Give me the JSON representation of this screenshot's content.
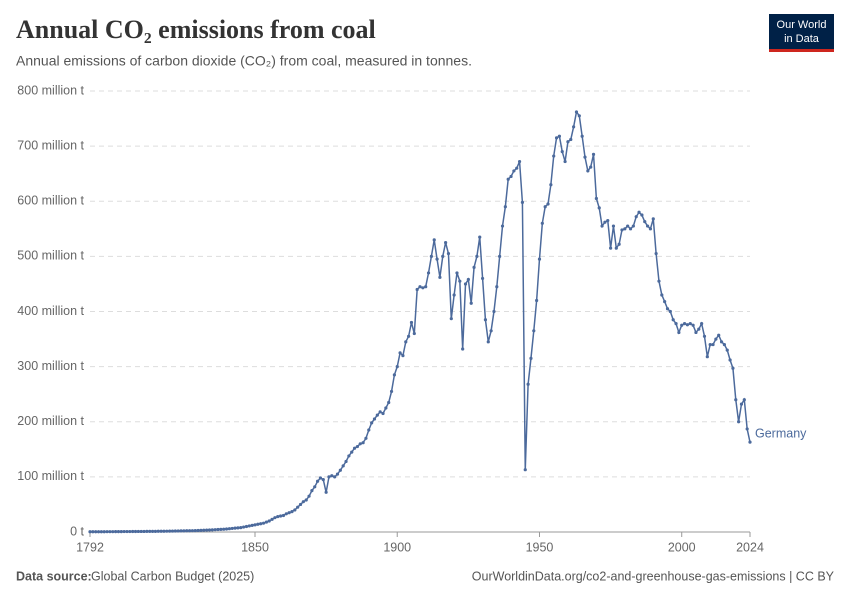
{
  "chart_data": {
    "type": "line",
    "title": "Annual CO₂ emissions from coal",
    "subtitle": "Annual emissions of carbon dioxide (CO₂) from coal, measured in tonnes.",
    "logo": [
      "Our World",
      "in Data"
    ],
    "source_label": "Data source:",
    "source": "Global Carbon Budget (2025)",
    "url": "OurWorldinData.org/co2-and-greenhouse-gas-emissions | CC BY",
    "xlim": [
      1792,
      2024
    ],
    "xticks": [
      1792,
      1850,
      1900,
      1950,
      2000,
      2024
    ],
    "ylim": [
      0,
      800000000.0
    ],
    "yticks": [
      {
        "value": 0,
        "label": "0 t"
      },
      {
        "value": 100000000.0,
        "label": "100 million t"
      },
      {
        "value": 200000000.0,
        "label": "200 million t"
      },
      {
        "value": 300000000.0,
        "label": "300 million t"
      },
      {
        "value": 400000000.0,
        "label": "400 million t"
      },
      {
        "value": 500000000.0,
        "label": "500 million t"
      },
      {
        "value": 600000000.0,
        "label": "600 million t"
      },
      {
        "value": 700000000.0,
        "label": "700 million t"
      },
      {
        "value": 800000000.0,
        "label": "800 million t"
      }
    ],
    "grid": true,
    "x": [
      1792,
      1793,
      1794,
      1795,
      1796,
      1797,
      1798,
      1799,
      1800,
      1801,
      1802,
      1803,
      1804,
      1805,
      1806,
      1807,
      1808,
      1809,
      1810,
      1811,
      1812,
      1813,
      1814,
      1815,
      1816,
      1817,
      1818,
      1819,
      1820,
      1821,
      1822,
      1823,
      1824,
      1825,
      1826,
      1827,
      1828,
      1829,
      1830,
      1831,
      1832,
      1833,
      1834,
      1835,
      1836,
      1837,
      1838,
      1839,
      1840,
      1841,
      1842,
      1843,
      1844,
      1845,
      1846,
      1847,
      1848,
      1849,
      1850,
      1851,
      1852,
      1853,
      1854,
      1855,
      1856,
      1857,
      1858,
      1859,
      1860,
      1861,
      1862,
      1863,
      1864,
      1865,
      1866,
      1867,
      1868,
      1869,
      1870,
      1871,
      1872,
      1873,
      1874,
      1875,
      1876,
      1877,
      1878,
      1879,
      1880,
      1881,
      1882,
      1883,
      1884,
      1885,
      1886,
      1887,
      1888,
      1889,
      1890,
      1891,
      1892,
      1893,
      1894,
      1895,
      1896,
      1897,
      1898,
      1899,
      1900,
      1901,
      1902,
      1903,
      1904,
      1905,
      1906,
      1907,
      1908,
      1909,
      1910,
      1911,
      1912,
      1913,
      1914,
      1915,
      1916,
      1917,
      1918,
      1919,
      1920,
      1921,
      1922,
      1923,
      1924,
      1925,
      1926,
      1927,
      1928,
      1929,
      1930,
      1931,
      1932,
      1933,
      1934,
      1935,
      1936,
      1937,
      1938,
      1939,
      1940,
      1941,
      1942,
      1943,
      1944,
      1945,
      1946,
      1947,
      1948,
      1949,
      1950,
      1951,
      1952,
      1953,
      1954,
      1955,
      1956,
      1957,
      1958,
      1959,
      1960,
      1961,
      1962,
      1963,
      1964,
      1965,
      1966,
      1967,
      1968,
      1969,
      1970,
      1971,
      1972,
      1973,
      1974,
      1975,
      1976,
      1977,
      1978,
      1979,
      1980,
      1981,
      1982,
      1983,
      1984,
      1985,
      1986,
      1987,
      1988,
      1989,
      1990,
      1991,
      1992,
      1993,
      1994,
      1995,
      1996,
      1997,
      1998,
      1999,
      2000,
      2001,
      2002,
      2003,
      2004,
      2005,
      2006,
      2007,
      2008,
      2009,
      2010,
      2011,
      2012,
      2013,
      2014,
      2015,
      2016,
      2017,
      2018,
      2019,
      2020,
      2021,
      2022,
      2023,
      2024
    ],
    "series": [
      {
        "name": "Germany",
        "color": "#4c6a9c",
        "values": [
          400000.0,
          400000.0,
          500000.0,
          500000.0,
          500000.0,
          500000.0,
          600000.0,
          600000.0,
          600000.0,
          700000.0,
          700000.0,
          700000.0,
          800000.0,
          800000.0,
          800000.0,
          900000.0,
          900000.0,
          1000000.0,
          1000000.0,
          1000000.0,
          1100000.0,
          1100000.0,
          1200000.0,
          1200000.0,
          1300000.0,
          1300000.0,
          1400000.0,
          1500000.0,
          1600000.0,
          1700000.0,
          1800000.0,
          1900000.0,
          2000000.0,
          2100000.0,
          2200000.0,
          2300000.0,
          2400000.0,
          2600000.0,
          2800000.0,
          3000000.0,
          3200000.0,
          3400000.0,
          3600000.0,
          3900000.0,
          4200000.0,
          4500000.0,
          4800000.0,
          5100000.0,
          5500000.0,
          6000000.0,
          6500000.0,
          7000000.0,
          7500000.0,
          8000000.0,
          9000000.0,
          10000000.0,
          11000000.0,
          12000000.0,
          13000000.0,
          14000000.0,
          15000000.0,
          16000000.0,
          18000000.0,
          20000000.0,
          23000000.0,
          26000000.0,
          28000000.0,
          29000000.0,
          30000000.0,
          33000000.0,
          35000000.0,
          37000000.0,
          40000000.0,
          45000000.0,
          50000000.0,
          55000000.0,
          58000000.0,
          65000000.0,
          75000000.0,
          82000000.0,
          92000000.0,
          98000000.0,
          95000000.0,
          72000000.0,
          100000000.0,
          102000000.0,
          100000000.0,
          105000000.0,
          112000000.0,
          120000000.0,
          128000000.0,
          138000000.0,
          145000000.0,
          152000000.0,
          155000000.0,
          160000000.0,
          162000000.0,
          170000000.0,
          185000000.0,
          198000000.0,
          205000000.0,
          212000000.0,
          218000000.0,
          215000000.0,
          225000000.0,
          235000000.0,
          255000000.0,
          285000000.0,
          300000000.0,
          325000000.0,
          320000000.0,
          345000000.0,
          355000000.0,
          380000000.0,
          360000000.0,
          440000000.0,
          445000000.0,
          443000000.0,
          445000000.0,
          470000000.0,
          500000000.0,
          530000000.0,
          495000000.0,
          462000000.0,
          500000000.0,
          525000000.0,
          505000000.0,
          387000000.0,
          430000000.0,
          470000000.0,
          455000000.0,
          332000000.0,
          450000000.0,
          458000000.0,
          415000000.0,
          480000000.0,
          500000000.0,
          535000000.0,
          460000000.0,
          385000000.0,
          345000000.0,
          365000000.0,
          400000000.0,
          445000000.0,
          500000000.0,
          555000000.0,
          590000000.0,
          640000000.0,
          645000000.0,
          655000000.0,
          660000000.0,
          672000000.0,
          598000000.0,
          113000000.0,
          268000000.0,
          315000000.0,
          365000000.0,
          420000000.0,
          495000000.0,
          560000000.0,
          590000000.0,
          595000000.0,
          630000000.0,
          682000000.0,
          715000000.0,
          718000000.0,
          690000000.0,
          672000000.0,
          708000000.0,
          712000000.0,
          735000000.0,
          762000000.0,
          755000000.0,
          718000000.0,
          680000000.0,
          655000000.0,
          662000000.0,
          685000000.0,
          605000000.0,
          588000000.0,
          555000000.0,
          562000000.0,
          565000000.0,
          515000000.0,
          555000000.0,
          515000000.0,
          522000000.0,
          548000000.0,
          550000000.0,
          555000000.0,
          550000000.0,
          555000000.0,
          572000000.0,
          580000000.0,
          575000000.0,
          563000000.0,
          555000000.0,
          550000000.0,
          568000000.0,
          505000000.0,
          455000000.0,
          430000000.0,
          418000000.0,
          405000000.0,
          400000000.0,
          385000000.0,
          378000000.0,
          362000000.0,
          375000000.0,
          378000000.0,
          376000000.0,
          378000000.0,
          375000000.0,
          362000000.0,
          368000000.0,
          378000000.0,
          355000000.0,
          318000000.0,
          340000000.0,
          340000000.0,
          350000000.0,
          357000000.0,
          345000000.0,
          340000000.0,
          330000000.0,
          312000000.0,
          297000000.0,
          240000000.0,
          200000000.0,
          232000000.0,
          240000000.0,
          187000000.0,
          163000000.0
        ]
      }
    ]
  }
}
